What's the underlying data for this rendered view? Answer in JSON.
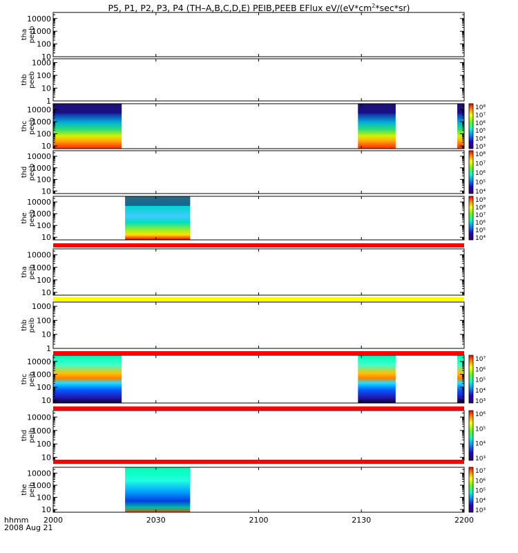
{
  "title": {
    "prefix": "P5, P1, P2, P3, P4 (TH–A,B,C,D,E) PEIB,PEEB EFlux eV/(eV*cm",
    "sup": "2",
    "suffix": "*sec*sr)"
  },
  "chart_data": {
    "type": "heatmap",
    "x_unit_label": "hhmm",
    "date_label": "2008 Aug 21",
    "x_ticks": [
      "2000",
      "2030",
      "2100",
      "2130",
      "2200"
    ],
    "x_range": [
      "2000",
      "2200"
    ],
    "panels": [
      {
        "label": [
          "tha",
          "peeb"
        ],
        "y_ticks": [
          "10000",
          "1000",
          "100",
          "10"
        ],
        "y_range": [
          10,
          30000
        ],
        "log": true,
        "intervals": [],
        "colorbar": null
      },
      {
        "label": [
          "thb",
          "peeb"
        ],
        "y_ticks": [
          "1000",
          "100",
          "10",
          "1"
        ],
        "y_range": [
          1,
          2000
        ],
        "log": true,
        "intervals": [],
        "colorbar": null
      },
      {
        "label": [
          "thc",
          "peeb"
        ],
        "y_ticks": [
          "10000",
          "1000",
          "100",
          "10"
        ],
        "y_range": [
          6,
          30000
        ],
        "log": true,
        "intervals": [
          [
            2000,
            2016
          ],
          [
            2003,
            2020
          ],
          [
            2129,
            2140
          ],
          [
            2158,
            2200
          ]
        ],
        "colorbar": [
          "10⁸",
          "10⁷",
          "10⁶",
          "10⁵",
          "10⁴",
          "10³"
        ]
      },
      {
        "label": [
          "thd",
          "peeb"
        ],
        "y_ticks": [
          "10000",
          "1000",
          "100",
          "10"
        ],
        "y_range": [
          6,
          30000
        ],
        "log": true,
        "intervals": [],
        "colorbar": [
          "10⁸",
          "10⁷",
          "10⁶",
          "10⁵",
          "10⁴"
        ]
      },
      {
        "label": [
          "the",
          "peeb"
        ],
        "y_ticks": [
          "10000",
          "1000",
          "100",
          "10"
        ],
        "y_range": [
          6,
          30000
        ],
        "log": true,
        "intervals": [
          [
            2021,
            2040
          ]
        ],
        "colorbar": [
          "10⁹",
          "10⁸",
          "10⁷",
          "10⁶",
          "10⁵",
          "10⁴"
        ]
      },
      {
        "label": [
          "tha",
          "peib"
        ],
        "y_ticks": [
          "10000",
          "1000",
          "100",
          "10"
        ],
        "y_range": [
          6,
          30000
        ],
        "log": true,
        "intervals": [],
        "colorbar": null
      },
      {
        "label": [
          "thb",
          "peib"
        ],
        "y_ticks": [
          "1000",
          "100",
          "10",
          "1"
        ],
        "y_range": [
          1,
          2000
        ],
        "log": true,
        "intervals": [],
        "colorbar": null
      },
      {
        "label": [
          "thc",
          "peib"
        ],
        "y_ticks": [
          "10000",
          "1000",
          "100",
          "10"
        ],
        "y_range": [
          6,
          30000
        ],
        "log": true,
        "intervals": [
          [
            2000,
            2016
          ],
          [
            2003,
            2020
          ],
          [
            2129,
            2140
          ],
          [
            2158,
            2200
          ]
        ],
        "colorbar": [
          "10⁷",
          "10⁶",
          "10⁵",
          "10⁴",
          "10³"
        ]
      },
      {
        "label": [
          "thd",
          "peib"
        ],
        "y_ticks": [
          "10000",
          "1000",
          "100",
          "10"
        ],
        "y_range": [
          6,
          30000
        ],
        "log": true,
        "intervals": [],
        "colorbar": [
          "10⁶",
          "10⁵",
          "10⁴",
          "10³"
        ]
      },
      {
        "label": [
          "the",
          "peib"
        ],
        "y_ticks": [
          "10000",
          "1000",
          "100",
          "10"
        ],
        "y_range": [
          6,
          30000
        ],
        "log": true,
        "intervals": [
          [
            2021,
            2040
          ]
        ],
        "colorbar": [
          "10⁷",
          "10⁶",
          "10⁵",
          "10⁴",
          "10³"
        ]
      }
    ]
  }
}
